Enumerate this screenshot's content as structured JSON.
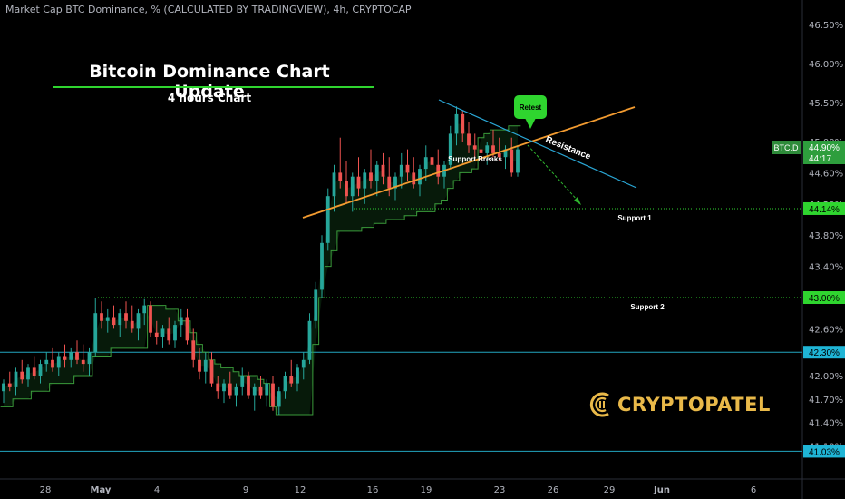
{
  "header": {
    "title": "Market Cap BTC Dominance, % (CALCULATED BY TRADINGVIEW), 4h, CRYPTOCAP"
  },
  "overlay": {
    "title": "Bitcoin Dominance Chart Update",
    "subtitle": "4 hours Chart"
  },
  "logo": {
    "text": "CRYPTOPATEL",
    "color": "#e9b949"
  },
  "colors": {
    "up": "#26a69a",
    "down": "#ef5350",
    "support_line": "#2fd52f",
    "level_line": "#22a6c0",
    "resistance": "#2aa7d6",
    "trendline": "#f29b30",
    "label_green": "#2fd52f",
    "label_cyan": "#1fb5d6"
  },
  "chart_data": {
    "type": "candlestick",
    "title": "Market Cap BTC Dominance, % (CALCULATED BY TRADINGVIEW), 4h, CRYPTOCAP",
    "symbol": "BTC.D",
    "timeframe": "4h",
    "y_axis": {
      "position": "right",
      "ticks": [
        "46.50%",
        "46.00%",
        "45.50%",
        "45.00%",
        "44.60%",
        "44.20%",
        "43.80%",
        "43.40%",
        "43.00%",
        "42.60%",
        "42.30%",
        "42.00%",
        "41.70%",
        "41.40%",
        "41.10%"
      ],
      "range": [
        40.95,
        46.65
      ]
    },
    "x_axis": {
      "ticks": [
        "28",
        "May",
        "4",
        "9",
        "12",
        "16",
        "19",
        "23",
        "26",
        "29",
        "Jun",
        "6"
      ]
    },
    "price_labels": [
      {
        "text": "BTC.D",
        "type": "symbol"
      },
      {
        "text": "44.90%",
        "value": 44.9,
        "type": "current"
      },
      {
        "text": "44:17",
        "type": "countdown"
      },
      {
        "text": "44.14%",
        "value": 44.14,
        "type": "level"
      },
      {
        "text": "43.00%",
        "value": 43.0,
        "type": "level"
      },
      {
        "text": "42.30%",
        "value": 42.3,
        "type": "level"
      },
      {
        "text": "41.03%",
        "value": 41.03,
        "type": "level"
      }
    ],
    "horizontal_levels": [
      {
        "value": 44.14,
        "label": "Support 1",
        "style": "dotted"
      },
      {
        "value": 43.0,
        "label": "Support 2",
        "style": "dotted"
      },
      {
        "value": 42.3,
        "label": "",
        "style": "solid"
      },
      {
        "value": 41.03,
        "label": "",
        "style": "solid"
      }
    ],
    "annotations": [
      {
        "text": "Resistance"
      },
      {
        "text": "Support Breaks"
      },
      {
        "text": "Retest"
      }
    ],
    "series": [
      {
        "name": "Candles",
        "ohlc": [
          [
            41.8,
            41.95,
            41.65,
            41.9
          ],
          [
            41.9,
            42.05,
            41.8,
            41.85
          ],
          [
            41.85,
            42.1,
            41.75,
            42.05
          ],
          [
            42.05,
            42.2,
            41.9,
            41.95
          ],
          [
            41.95,
            42.15,
            41.85,
            42.1
          ],
          [
            42.1,
            42.25,
            41.95,
            42.0
          ],
          [
            42.0,
            42.2,
            41.9,
            42.15
          ],
          [
            42.15,
            42.3,
            42.05,
            42.2
          ],
          [
            42.2,
            42.35,
            42.05,
            42.1
          ],
          [
            42.1,
            42.3,
            42.0,
            42.25
          ],
          [
            42.25,
            42.4,
            42.1,
            42.2
          ],
          [
            42.2,
            42.35,
            42.1,
            42.3
          ],
          [
            42.3,
            42.45,
            42.15,
            42.2
          ],
          [
            42.2,
            42.4,
            42.05,
            42.15
          ],
          [
            42.15,
            42.35,
            42.0,
            42.3
          ],
          [
            42.3,
            43.0,
            42.25,
            42.8
          ],
          [
            42.8,
            42.95,
            42.6,
            42.7
          ],
          [
            42.7,
            42.85,
            42.55,
            42.75
          ],
          [
            42.75,
            42.9,
            42.6,
            42.65
          ],
          [
            42.65,
            42.85,
            42.5,
            42.8
          ],
          [
            42.8,
            42.95,
            42.6,
            42.7
          ],
          [
            42.7,
            42.9,
            42.55,
            42.6
          ],
          [
            42.6,
            42.85,
            42.45,
            42.8
          ],
          [
            42.8,
            42.98,
            42.65,
            42.9
          ],
          [
            42.9,
            42.95,
            42.5,
            42.55
          ],
          [
            42.55,
            42.7,
            42.4,
            42.5
          ],
          [
            42.5,
            42.65,
            42.35,
            42.6
          ],
          [
            42.6,
            42.75,
            42.4,
            42.45
          ],
          [
            42.45,
            42.7,
            42.35,
            42.65
          ],
          [
            42.65,
            42.85,
            42.5,
            42.75
          ],
          [
            42.75,
            42.85,
            42.4,
            42.45
          ],
          [
            42.45,
            42.6,
            42.1,
            42.2
          ],
          [
            42.2,
            42.35,
            41.95,
            42.05
          ],
          [
            42.05,
            42.3,
            41.9,
            42.2
          ],
          [
            42.2,
            42.3,
            41.85,
            41.9
          ],
          [
            41.9,
            42.0,
            41.7,
            41.8
          ],
          [
            41.8,
            41.95,
            41.65,
            41.9
          ],
          [
            41.9,
            42.05,
            41.7,
            41.75
          ],
          [
            41.75,
            41.9,
            41.6,
            41.85
          ],
          [
            41.85,
            42.1,
            41.75,
            42.0
          ],
          [
            42.0,
            42.05,
            41.7,
            41.75
          ],
          [
            41.75,
            41.9,
            41.55,
            41.85
          ],
          [
            41.85,
            42.0,
            41.7,
            41.75
          ],
          [
            41.75,
            41.95,
            41.6,
            41.9
          ],
          [
            41.9,
            42.0,
            41.55,
            41.6
          ],
          [
            41.6,
            41.85,
            41.5,
            41.8
          ],
          [
            41.8,
            42.05,
            41.7,
            42.0
          ],
          [
            42.0,
            42.2,
            41.85,
            41.9
          ],
          [
            41.9,
            42.15,
            41.8,
            42.1
          ],
          [
            42.1,
            42.3,
            41.95,
            42.2
          ],
          [
            42.2,
            42.8,
            42.15,
            42.7
          ],
          [
            42.7,
            43.2,
            42.6,
            43.1
          ],
          [
            43.1,
            43.8,
            43.0,
            43.7
          ],
          [
            43.7,
            44.4,
            43.6,
            44.3
          ],
          [
            44.3,
            44.7,
            44.1,
            44.6
          ],
          [
            44.6,
            45.05,
            44.4,
            44.5
          ],
          [
            44.5,
            44.75,
            44.2,
            44.3
          ],
          [
            44.3,
            44.6,
            44.1,
            44.55
          ],
          [
            44.55,
            44.8,
            44.3,
            44.4
          ],
          [
            44.4,
            44.65,
            44.2,
            44.6
          ],
          [
            44.6,
            44.9,
            44.4,
            44.5
          ],
          [
            44.5,
            44.75,
            44.3,
            44.7
          ],
          [
            44.7,
            44.85,
            44.45,
            44.55
          ],
          [
            44.55,
            44.8,
            44.3,
            44.4
          ],
          [
            44.4,
            44.6,
            44.25,
            44.55
          ],
          [
            44.55,
            44.85,
            44.4,
            44.7
          ],
          [
            44.7,
            44.9,
            44.5,
            44.6
          ],
          [
            44.6,
            44.8,
            44.4,
            44.45
          ],
          [
            44.45,
            44.7,
            44.3,
            44.65
          ],
          [
            44.65,
            44.95,
            44.5,
            44.8
          ],
          [
            44.8,
            45.1,
            44.6,
            44.7
          ],
          [
            44.7,
            44.9,
            44.45,
            44.55
          ],
          [
            44.55,
            44.75,
            44.4,
            44.7
          ],
          [
            44.7,
            45.2,
            44.65,
            45.1
          ],
          [
            45.1,
            45.45,
            44.95,
            45.35
          ],
          [
            45.35,
            45.4,
            45.0,
            45.1
          ],
          [
            45.1,
            45.25,
            44.85,
            44.95
          ],
          [
            44.95,
            45.1,
            44.75,
            44.9
          ],
          [
            44.9,
            45.05,
            44.7,
            44.85
          ],
          [
            44.85,
            45.0,
            44.7,
            44.95
          ],
          [
            44.95,
            45.15,
            44.8,
            44.85
          ],
          [
            44.85,
            45.05,
            44.75,
            44.8
          ],
          [
            44.8,
            44.95,
            44.65,
            44.9
          ],
          [
            44.9,
            45.05,
            44.55,
            44.6
          ],
          [
            44.6,
            44.95,
            44.55,
            44.9
          ]
        ]
      },
      {
        "name": "Trailing Stop",
        "values": [
          41.6,
          41.6,
          41.7,
          41.7,
          41.7,
          41.8,
          41.8,
          41.8,
          41.9,
          41.9,
          41.9,
          41.9,
          42.0,
          42.0,
          42.0,
          42.25,
          42.25,
          42.25,
          42.35,
          42.35,
          42.35,
          42.35,
          42.35,
          42.35,
          42.9,
          42.9,
          42.9,
          42.85,
          42.85,
          42.7,
          42.7,
          42.55,
          42.4,
          42.3,
          42.2,
          42.15,
          42.1,
          42.1,
          42.05,
          42.0,
          42.0,
          42.0,
          41.95,
          41.9,
          41.6,
          41.5,
          41.5,
          41.5,
          41.5,
          41.5,
          41.5,
          42.4,
          43.0,
          43.4,
          43.6,
          43.85,
          43.85,
          43.85,
          43.85,
          43.9,
          43.9,
          43.95,
          43.95,
          44.0,
          44.0,
          44.0,
          44.05,
          44.05,
          44.1,
          44.1,
          44.1,
          44.2,
          44.25,
          44.4,
          44.5,
          44.6,
          44.6,
          44.65,
          45.05,
          45.1,
          45.15,
          45.15,
          45.15,
          45.2,
          45.2
        ]
      }
    ]
  }
}
